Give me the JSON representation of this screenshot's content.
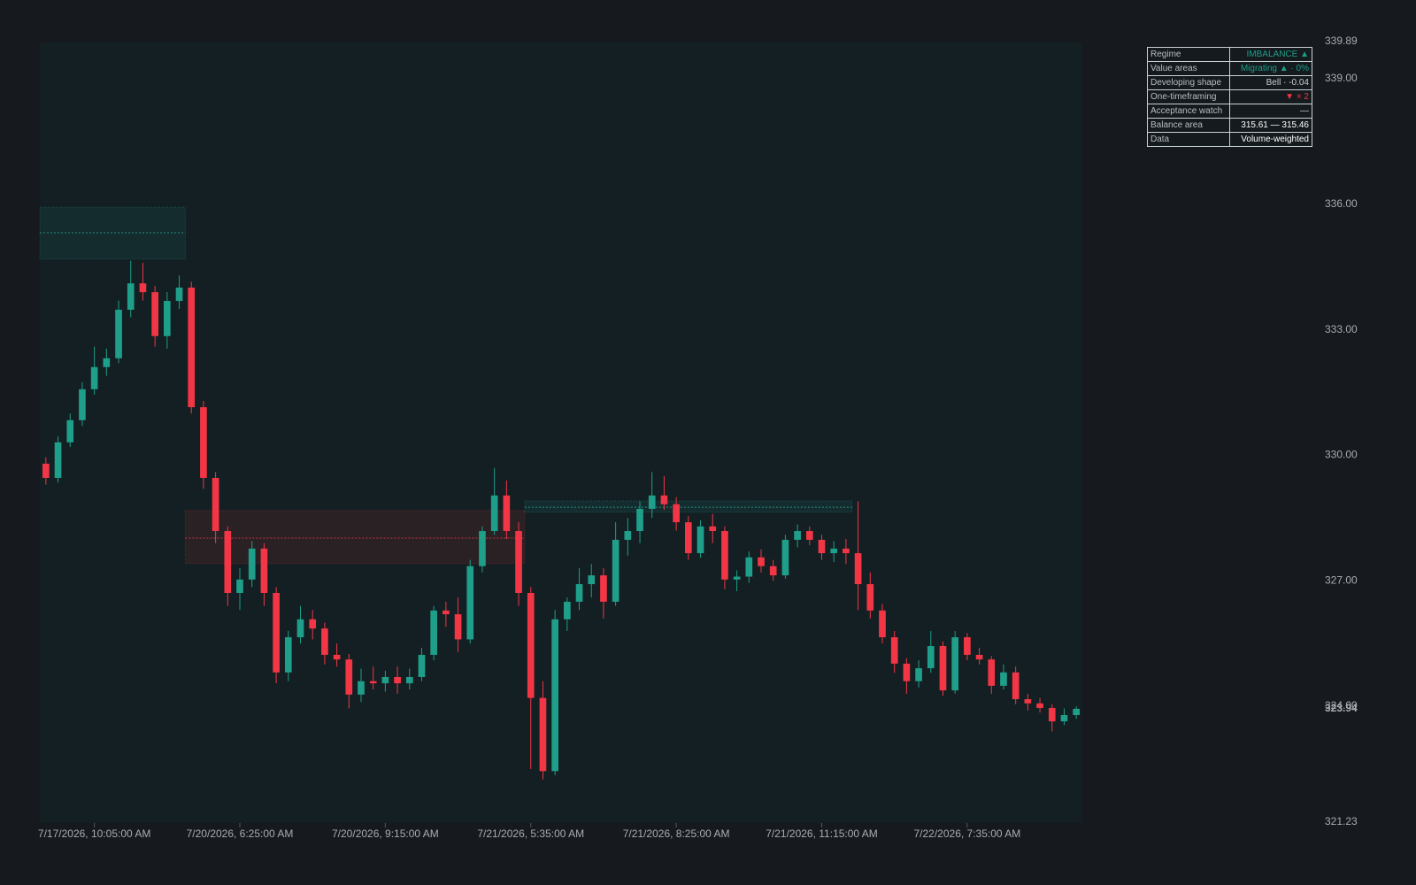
{
  "chart_data": {
    "type": "candlestick",
    "up_color": "#1f9e89",
    "down_color": "#f23645",
    "ylim": [
      321.23,
      339.89
    ],
    "yticks": [
      321.23,
      {
        "value": 324,
        "label": "324.00"
      },
      {
        "value": 327,
        "label": "327.00"
      },
      {
        "value": 330,
        "label": "330.00"
      },
      {
        "value": 333,
        "label": "333.00"
      },
      {
        "value": 336,
        "label": "336.00"
      },
      {
        "value": 339,
        "label": "339.00"
      },
      339.89
    ],
    "categories": [
      null,
      null,
      null,
      null,
      "7/17/2026, 10:05:00 AM",
      null,
      null,
      null,
      null,
      null,
      null,
      null,
      null,
      null,
      null,
      null,
      "7/20/2026, 6:25:00 AM",
      null,
      null,
      null,
      null,
      null,
      null,
      null,
      null,
      null,
      null,
      null,
      "7/20/2026, 9:15:00 AM",
      null,
      null,
      null,
      null,
      null,
      null,
      null,
      null,
      null,
      null,
      null,
      "7/21/2026, 5:35:00 AM",
      null,
      null,
      null,
      null,
      null,
      null,
      null,
      null,
      null,
      null,
      null,
      "7/21/2026, 8:25:00 AM",
      null,
      null,
      null,
      null,
      null,
      null,
      null,
      null,
      null,
      null,
      null,
      "7/21/2026, 11:15:00 AM",
      null,
      null,
      null,
      null,
      null,
      null,
      null,
      null,
      null,
      null,
      null,
      "7/22/2026, 7:35:00 AM",
      null,
      null,
      null,
      null,
      null,
      null,
      null,
      null,
      null
    ],
    "open": [
      329.8,
      329.46,
      330.31,
      330.84,
      331.58,
      332.11,
      332.32,
      333.48,
      334.11,
      333.9,
      332.85,
      333.69,
      334.01,
      331.15,
      329.46,
      328.19,
      326.71,
      327.03,
      327.77,
      326.71,
      324.81,
      325.65,
      326.08,
      325.86,
      325.23,
      325.12,
      324.28,
      324.6,
      324.55,
      324.7,
      324.55,
      324.7,
      325.23,
      326.29,
      326.2,
      325.6,
      327.35,
      328.19,
      329.04,
      328.19,
      326.71,
      324.2,
      322.45,
      326.08,
      326.5,
      326.92,
      327.13,
      326.5,
      327.98,
      328.19,
      328.72,
      329.04,
      328.83,
      328.4,
      327.66,
      328.3,
      328.19,
      327.03,
      327.1,
      327.56,
      327.35,
      327.13,
      327.98,
      328.19,
      327.98,
      327.66,
      327.77,
      327.66,
      326.92,
      326.29,
      325.65,
      325.02,
      324.6,
      324.91,
      325.44,
      324.38,
      325.65,
      325.23,
      325.12,
      324.49,
      324.81,
      324.17,
      324.07,
      323.96,
      323.64,
      323.79
    ],
    "high": [
      329.95,
      330.45,
      331.0,
      331.75,
      332.6,
      332.55,
      333.7,
      334.65,
      334.6,
      334.05,
      333.9,
      334.3,
      334.15,
      331.3,
      329.6,
      328.3,
      327.3,
      327.95,
      327.9,
      326.85,
      325.8,
      326.4,
      326.3,
      326.0,
      325.5,
      325.25,
      324.9,
      324.95,
      324.85,
      324.95,
      324.9,
      325.4,
      326.4,
      326.5,
      326.6,
      327.5,
      328.3,
      329.7,
      329.4,
      328.4,
      326.85,
      324.6,
      326.3,
      326.6,
      327.3,
      327.4,
      327.3,
      328.4,
      328.5,
      328.9,
      329.6,
      329.5,
      329.0,
      328.55,
      328.45,
      328.6,
      328.3,
      327.25,
      327.7,
      327.75,
      327.5,
      328.1,
      328.35,
      328.3,
      328.1,
      327.95,
      328.0,
      328.9,
      327.2,
      326.45,
      325.8,
      325.15,
      325.1,
      325.8,
      325.55,
      325.8,
      325.75,
      325.4,
      325.2,
      325.0,
      324.95,
      324.3,
      324.2,
      324.05,
      323.95,
      324.0
    ],
    "low": [
      329.3,
      329.35,
      330.2,
      330.7,
      331.45,
      331.9,
      332.2,
      333.3,
      333.7,
      332.6,
      332.55,
      333.5,
      331.0,
      329.2,
      327.9,
      326.4,
      326.3,
      326.85,
      326.4,
      324.55,
      324.6,
      325.5,
      325.6,
      325.0,
      324.95,
      323.95,
      324.1,
      324.4,
      324.35,
      324.3,
      324.4,
      324.6,
      325.1,
      325.9,
      325.3,
      325.5,
      327.2,
      328.1,
      328.0,
      326.4,
      322.5,
      322.25,
      322.35,
      325.8,
      326.3,
      326.6,
      326.1,
      326.4,
      327.6,
      327.9,
      328.5,
      328.7,
      328.2,
      327.5,
      327.55,
      327.9,
      326.8,
      326.75,
      326.95,
      327.2,
      327.0,
      327.05,
      327.8,
      327.85,
      327.5,
      327.45,
      327.4,
      326.3,
      326.1,
      325.5,
      324.8,
      324.3,
      324.45,
      324.8,
      324.25,
      324.3,
      325.1,
      325.0,
      324.3,
      324.4,
      324.05,
      323.9,
      323.85,
      323.4,
      323.55,
      323.7
    ],
    "close": [
      329.46,
      330.31,
      330.84,
      331.58,
      332.11,
      332.32,
      333.48,
      334.11,
      333.9,
      332.85,
      333.69,
      334.01,
      331.15,
      329.46,
      328.19,
      326.71,
      327.03,
      327.77,
      326.71,
      324.81,
      325.65,
      326.08,
      325.86,
      325.23,
      325.12,
      324.28,
      324.6,
      324.55,
      324.7,
      324.55,
      324.7,
      325.23,
      326.29,
      326.2,
      325.6,
      327.35,
      328.19,
      329.04,
      328.19,
      326.71,
      324.2,
      322.45,
      326.08,
      326.5,
      326.92,
      327.13,
      326.5,
      327.98,
      328.19,
      328.72,
      329.04,
      328.83,
      328.4,
      327.66,
      328.3,
      328.19,
      327.03,
      327.1,
      327.56,
      327.35,
      327.13,
      327.98,
      328.19,
      327.98,
      327.66,
      327.77,
      327.66,
      326.92,
      326.29,
      325.65,
      325.02,
      324.6,
      324.91,
      325.44,
      324.38,
      325.65,
      325.23,
      325.12,
      324.49,
      324.81,
      324.17,
      324.07,
      323.96,
      323.64,
      323.79,
      323.94
    ],
    "value_areas": [
      {
        "x_start": 0,
        "x_end": 11,
        "high": 335.93,
        "low": 334.69,
        "poc": 335.32,
        "color": "#26a69a"
      },
      {
        "x_start": 12,
        "x_end": 39,
        "high": 328.68,
        "low": 327.41,
        "poc": 328.02,
        "color": "#f23645"
      },
      {
        "x_start": 40,
        "x_end": 66,
        "high": 328.91,
        "low": 328.64,
        "poc": 328.76,
        "color": "#26a69a"
      }
    ],
    "table": {
      "rows": [
        {
          "label": "Regime",
          "value": "IMBALANCE ▲",
          "color": "#1f9e89"
        },
        {
          "label": "Value areas",
          "value": "Migrating ▲ · 0%",
          "color": "#1f9e89"
        },
        {
          "label": "Developing shape",
          "value": "Bell · -0.04",
          "color": "#c8ccd0"
        },
        {
          "label": "One-timeframing",
          "value": "▼ × 2",
          "color": "#f23645"
        },
        {
          "label": "Acceptance watch",
          "value": "—",
          "color": "#c8ccd0"
        },
        {
          "label": "Balance area",
          "value": "315.61 — 315.46",
          "color": "#ffffff"
        },
        {
          "label": "Data",
          "value": "Volume-weighted",
          "color": "#ffffff"
        }
      ]
    }
  }
}
